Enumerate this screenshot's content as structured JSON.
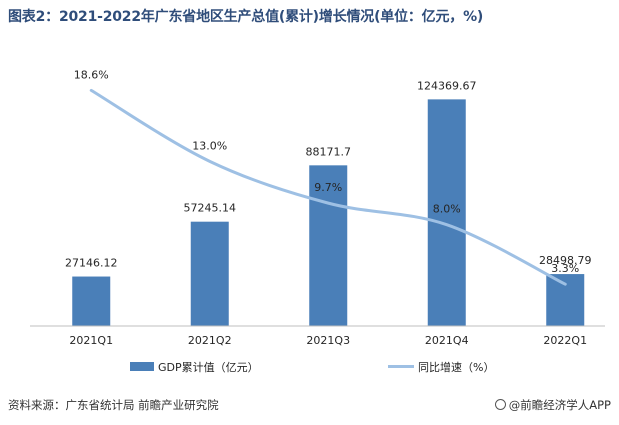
{
  "title": "图表2：2021-2022年广东省地区生产总值(累计)增长情况(单位：亿元，%)",
  "source": "资料来源：广东省统计局 前瞻产业研究院",
  "brand": "@前瞻经济学人APP",
  "colors": {
    "bar": "#4a7fb8",
    "line": "#9ec0e4",
    "title": "#2f4d7a"
  },
  "chart_data": {
    "type": "bar",
    "categories": [
      "2021Q1",
      "2021Q2",
      "2021Q3",
      "2021Q4",
      "2022Q1"
    ],
    "series": [
      {
        "name": "GDP累计值（亿元）",
        "type": "bar",
        "values": [
          27146.12,
          57245.14,
          88171.7,
          124369.67,
          28498.79
        ],
        "labels": [
          "27146.12",
          "57245.14",
          "88171.7",
          "124369.67",
          "28498.79"
        ]
      },
      {
        "name": "同比增速（%）",
        "type": "line",
        "values": [
          18.6,
          13.0,
          9.7,
          8.0,
          3.3
        ],
        "labels": [
          "18.6%",
          "13.0%",
          "9.7%",
          "8.0%",
          "3.3%"
        ]
      }
    ],
    "ylim_bar": [
      0,
      135000
    ],
    "ylim_line": [
      0,
      21
    ],
    "grid": false,
    "legend": "bottom"
  }
}
